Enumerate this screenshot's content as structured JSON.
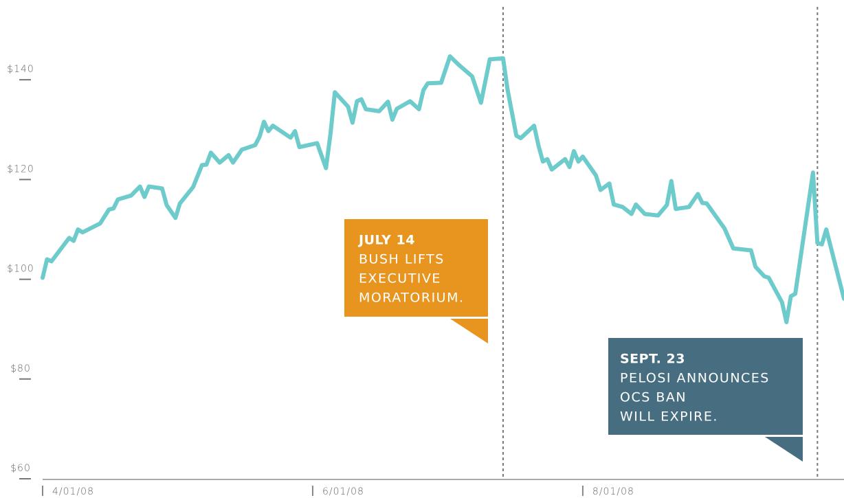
{
  "chart_data": {
    "type": "line",
    "color": "#6ecbcb",
    "x": [
      "2008-04-01",
      "2008-04-02",
      "2008-04-03",
      "2008-04-07",
      "2008-04-08",
      "2008-04-09",
      "2008-04-10",
      "2008-04-14",
      "2008-04-16",
      "2008-04-17",
      "2008-04-18",
      "2008-04-21",
      "2008-04-23",
      "2008-04-24",
      "2008-04-25",
      "2008-04-28",
      "2008-04-29",
      "2008-05-01",
      "2008-05-02",
      "2008-05-05",
      "2008-05-07",
      "2008-05-08",
      "2008-05-09",
      "2008-05-11",
      "2008-05-13",
      "2008-05-14",
      "2008-05-16",
      "2008-05-19",
      "2008-05-20",
      "2008-05-21",
      "2008-05-22",
      "2008-05-23",
      "2008-05-27",
      "2008-05-28",
      "2008-05-29",
      "2008-06-02",
      "2008-06-04",
      "2008-06-05",
      "2008-06-06",
      "2008-06-09",
      "2008-06-10",
      "2008-06-11",
      "2008-06-12",
      "2008-06-13",
      "2008-06-16",
      "2008-06-18",
      "2008-06-19",
      "2008-06-20",
      "2008-06-23",
      "2008-06-25",
      "2008-06-26",
      "2008-06-27",
      "2008-06-30",
      "2008-07-02",
      "2008-07-04",
      "2008-07-07",
      "2008-07-09",
      "2008-07-11",
      "2008-07-14",
      "2008-07-15",
      "2008-07-17",
      "2008-07-18",
      "2008-07-21",
      "2008-07-22",
      "2008-07-23",
      "2008-07-24",
      "2008-07-25",
      "2008-07-28",
      "2008-07-29",
      "2008-07-30",
      "2008-07-31",
      "2008-08-01",
      "2008-08-04",
      "2008-08-05",
      "2008-08-07",
      "2008-08-08",
      "2008-08-10",
      "2008-08-12",
      "2008-08-13",
      "2008-08-15",
      "2008-08-18",
      "2008-08-20",
      "2008-08-21",
      "2008-08-22",
      "2008-08-25",
      "2008-08-27",
      "2008-08-28",
      "2008-08-29",
      "2008-09-02",
      "2008-09-04",
      "2008-09-08",
      "2008-09-09",
      "2008-09-11",
      "2008-09-12",
      "2008-09-15",
      "2008-09-16",
      "2008-09-17",
      "2008-09-18",
      "2008-09-22",
      "2008-09-23",
      "2008-09-24",
      "2008-09-25",
      "2008-09-29"
    ],
    "values": [
      100.3,
      104,
      103.6,
      108.3,
      107.7,
      110,
      109.4,
      111.2,
      114,
      114.2,
      116,
      116.8,
      118.6,
      116.5,
      118.6,
      118.2,
      114.9,
      112.3,
      115.2,
      118.5,
      122.9,
      123,
      125.4,
      123.4,
      124.9,
      123.4,
      126,
      126.9,
      128.6,
      131.6,
      129.7,
      130.8,
      128.4,
      129.7,
      126.5,
      127.3,
      122.3,
      129,
      137.5,
      134.6,
      131.4,
      135.7,
      136.1,
      134.1,
      133.7,
      135.6,
      132,
      134.2,
      135.7,
      134.1,
      137.9,
      139.3,
      139.4,
      144.7,
      143,
      140.7,
      135.4,
      144.1,
      144.3,
      138.1,
      128.8,
      128.3,
      130.8,
      126.8,
      123.6,
      124.1,
      122,
      124.1,
      122.5,
      125.7,
      123.6,
      124.6,
      120.8,
      117.9,
      119.2,
      115,
      114.5,
      113.1,
      115,
      113.1,
      112.8,
      114.9,
      119.7,
      114.1,
      114.5,
      117.1,
      115.3,
      115.2,
      110.2,
      106.2,
      105.8,
      102.5,
      100.6,
      100.3,
      95.4,
      91.4,
      96.6,
      97.1,
      121.4,
      107.3,
      107,
      110,
      96.1
    ],
    "xlim": [
      "2008-04-01",
      "2008-09-29"
    ],
    "xticks": [
      {
        "value": "2008-04-01",
        "label": "4/01/08"
      },
      {
        "value": "2008-06-01",
        "label": "6/01/08"
      },
      {
        "value": "2008-08-01",
        "label": "8/01/08"
      }
    ],
    "ylim": [
      60,
      156
    ],
    "yticks": [
      {
        "value": 60,
        "label": "$60"
      },
      {
        "value": 80,
        "label": "$80"
      },
      {
        "value": 100,
        "label": "$100"
      },
      {
        "value": 120,
        "label": "$120"
      },
      {
        "value": 140,
        "label": "$140"
      }
    ],
    "annotations": [
      {
        "x": "2008-07-14",
        "date": "JULY 14",
        "text": [
          "BUSH LIFTS",
          "EXECUTIVE",
          "MORATORIUM."
        ],
        "color": "#e8951f"
      },
      {
        "x": "2008-09-23",
        "date": "SEPT. 23",
        "text": [
          "PELOSI ANNOUNCES",
          "OCS BAN",
          "WILL EXPIRE."
        ],
        "color": "#476e80"
      }
    ]
  }
}
